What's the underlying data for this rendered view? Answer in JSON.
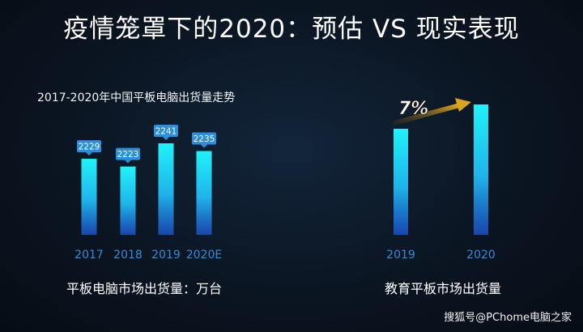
{
  "header": {
    "title": "疫情笼罩下的2020：预估 VS 现实表现"
  },
  "chart_data": [
    {
      "type": "bar",
      "title": "2017-2020年中国平板电脑出货量走势",
      "categories": [
        "2017",
        "2018",
        "2019",
        "2020E"
      ],
      "values": [
        2229,
        2223,
        2241,
        2235
      ],
      "data_labels": [
        "2229",
        "2223",
        "2241",
        "2235"
      ],
      "caption": "平板电脑市场出货量：万台",
      "grid": false
    },
    {
      "type": "bar",
      "categories": [
        "2019",
        "2020"
      ],
      "values": [
        100,
        107
      ],
      "annotation": "7%",
      "caption": "教育平板市场出货量",
      "grid": false
    }
  ],
  "watermark": "搜狐号@PChome电脑之家",
  "colors": {
    "bar_top": "#20f2f8",
    "bar_bottom": "#1a5fd0",
    "label_bg": "#2a8fdc",
    "arrow": "#d9a520",
    "tick": "#2e8cd8"
  }
}
